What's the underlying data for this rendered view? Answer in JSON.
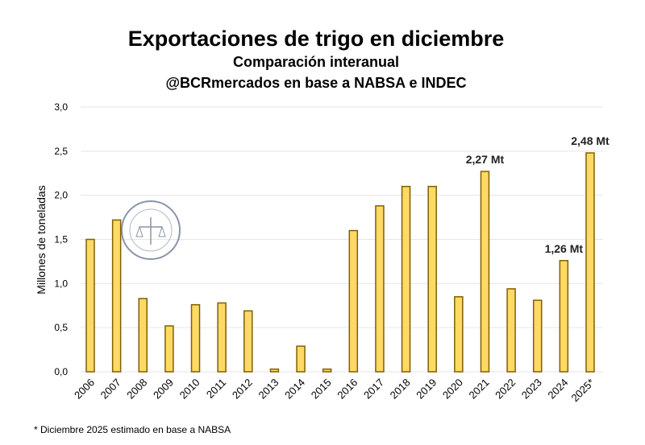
{
  "chart_data": {
    "type": "bar",
    "title": "Exportaciones de trigo en diciembre",
    "subtitle": "Comparación interanual",
    "source": "@BCRmercados en base a NABSA e INDEC",
    "ylabel": "Millones de toneladas",
    "xlabel": "",
    "ylim": [
      0,
      3.0
    ],
    "yticks": [
      "0,0",
      "0,5",
      "1,0",
      "1,5",
      "2,0",
      "2,5",
      "3,0"
    ],
    "grid": true,
    "categories": [
      "2006",
      "2007",
      "2008",
      "2009",
      "2010",
      "2011",
      "2012",
      "2013",
      "2014",
      "2015",
      "2016",
      "2017",
      "2018",
      "2019",
      "2020",
      "2021",
      "2022",
      "2023",
      "2024",
      "2025*"
    ],
    "values": [
      1.5,
      1.72,
      0.83,
      0.52,
      0.76,
      0.78,
      0.69,
      0.03,
      0.29,
      0.03,
      1.6,
      1.88,
      2.1,
      2.1,
      0.85,
      2.27,
      0.94,
      0.81,
      1.26,
      2.48
    ],
    "annotations": [
      {
        "category": "2021",
        "text": "2,27 Mt"
      },
      {
        "category": "2024",
        "text": "1,26 Mt"
      },
      {
        "category": "2025*",
        "text": "2,48 Mt"
      }
    ],
    "footnote": "* Diciembre 2025 estimado en base a NABSA",
    "watermark": "BOLSA DE COMERCIO DE ROSARIO",
    "colors": {
      "bar": "#FFD966",
      "bar_stroke": "#7F6000",
      "grid": "#E6E6E6",
      "text": "#000000"
    }
  }
}
